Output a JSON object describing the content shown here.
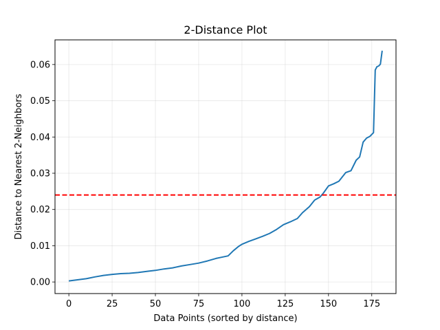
{
  "chart_data": {
    "type": "line",
    "title": "2-Distance Plot",
    "xlabel": "Data Points (sorted by distance)",
    "ylabel": "Distance to Nearest 2-Neighbors",
    "xlim": [
      -8,
      189
    ],
    "ylim": [
      -0.0032,
      0.0668
    ],
    "xticks": [
      0,
      25,
      50,
      75,
      100,
      125,
      150,
      175
    ],
    "yticks": [
      0.0,
      0.01,
      0.02,
      0.03,
      0.04,
      0.05,
      0.06
    ],
    "ytick_labels": [
      "0.00",
      "0.01",
      "0.02",
      "0.03",
      "0.04",
      "0.05",
      "0.06"
    ],
    "grid": true,
    "series": [
      {
        "color": "#1f77b4",
        "x": [
          0,
          5,
          10,
          15,
          20,
          25,
          30,
          35,
          40,
          45,
          50,
          55,
          60,
          65,
          70,
          75,
          80,
          85,
          88,
          92,
          95,
          98,
          100,
          104,
          108,
          112,
          116,
          120,
          124,
          128,
          132,
          135,
          139,
          142,
          145,
          147,
          150,
          153,
          156,
          160,
          163,
          166,
          168,
          170,
          172,
          174,
          176,
          177,
          178,
          179,
          180,
          181
        ],
        "y": [
          0.0003,
          0.0006,
          0.0009,
          0.0014,
          0.0018,
          0.0021,
          0.0023,
          0.0024,
          0.0026,
          0.0029,
          0.0032,
          0.0036,
          0.0039,
          0.0044,
          0.0048,
          0.0052,
          0.0058,
          0.0065,
          0.0068,
          0.0072,
          0.0086,
          0.0098,
          0.0104,
          0.0112,
          0.0119,
          0.0126,
          0.0134,
          0.0145,
          0.0158,
          0.0166,
          0.0175,
          0.0191,
          0.0208,
          0.0226,
          0.0234,
          0.0245,
          0.0265,
          0.0271,
          0.0278,
          0.0302,
          0.0307,
          0.0336,
          0.0345,
          0.0386,
          0.0397,
          0.0402,
          0.0412,
          0.0585,
          0.0594,
          0.0596,
          0.0601,
          0.0638
        ]
      },
      {
        "color": "#ff0000",
        "style": "dashed",
        "y_value": 0.024
      }
    ]
  }
}
